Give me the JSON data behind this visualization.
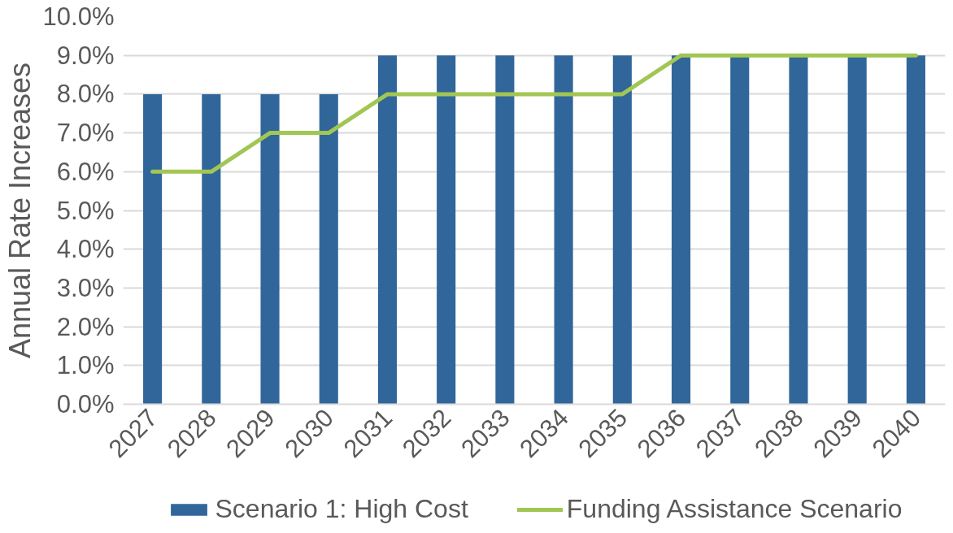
{
  "chart_data": {
    "type": "bar",
    "ylabel": "Annual Rate Increases",
    "categories": [
      "2027",
      "2028",
      "2029",
      "2030",
      "2031",
      "2032",
      "2033",
      "2034",
      "2035",
      "2036",
      "2037",
      "2038",
      "2039",
      "2040"
    ],
    "series": [
      {
        "name": "Scenario 1: High Cost",
        "color": "#31669a",
        "values": [
          8,
          8,
          8,
          8,
          9,
          9,
          9,
          9,
          9,
          9,
          9,
          9,
          9,
          9
        ]
      },
      {
        "name": "Funding Assistance Scenario",
        "type": "line",
        "color": "#a2c653",
        "values": [
          6,
          6,
          7,
          7,
          8,
          8,
          8,
          8,
          8,
          9,
          9,
          9,
          9,
          9
        ]
      }
    ],
    "ylim": [
      0,
      10
    ],
    "yticks": [
      {
        "value": 0,
        "label": "0.0%"
      },
      {
        "value": 1,
        "label": "1.0%"
      },
      {
        "value": 2,
        "label": "2.0%"
      },
      {
        "value": 3,
        "label": "3.0%"
      },
      {
        "value": 4,
        "label": "4.0%"
      },
      {
        "value": 5,
        "label": "5.0%"
      },
      {
        "value": 6,
        "label": "6.0%"
      },
      {
        "value": 7,
        "label": "7.0%"
      },
      {
        "value": 8,
        "label": "8.0%"
      },
      {
        "value": 9,
        "label": "9.0%"
      },
      {
        "value": 10,
        "label": "10.0%"
      }
    ],
    "grid": "y",
    "legend": "bottom",
    "marker": "none",
    "line_style": "solid"
  }
}
